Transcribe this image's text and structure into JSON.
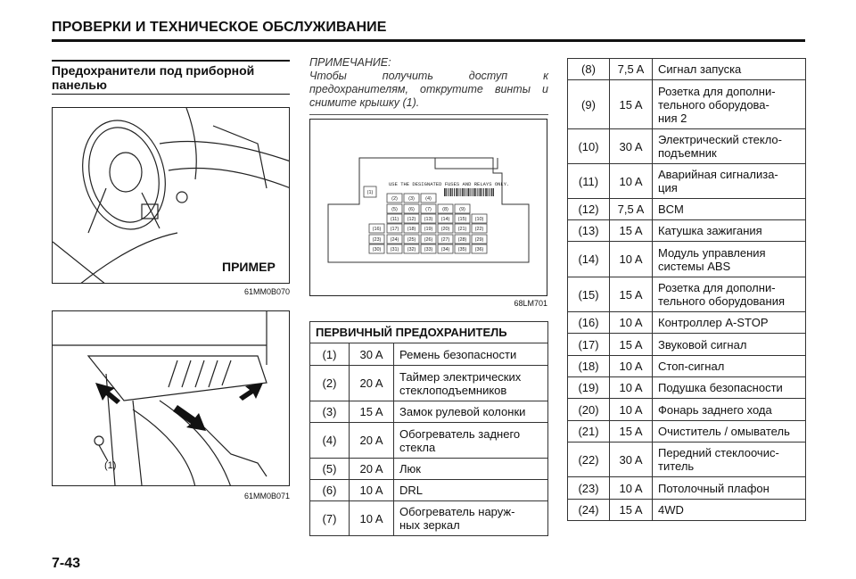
{
  "header": {
    "title": "ПРОВЕРКИ И ТЕХНИЧЕСКОЕ ОБСЛУЖИВАНИЕ"
  },
  "section": {
    "subtitle": "Предохранители под приборной панелью"
  },
  "figure1": {
    "label": "ПРИМЕР",
    "caption": "61MM0B070"
  },
  "figure2": {
    "callout": "(1)",
    "caption": "61MM0B071"
  },
  "note": {
    "heading": "ПРИМЕЧАНИЕ:",
    "text": "Чтобы получить доступ к предохранителям, открутите винты и снимите крышку (1)."
  },
  "fusebox": {
    "warning": "USE THE DESIGNATED FUSES AND RELAYS ONLY.",
    "caption": "68LM701",
    "fuses": [
      "(1)",
      "(2)",
      "(3)",
      "(4)",
      "(5)",
      "(6)",
      "(7)",
      "(8)",
      "(9)",
      "(10)",
      "(11)",
      "(12)",
      "(13)",
      "(14)",
      "(15)",
      "(16)",
      "(17)",
      "(18)",
      "(19)",
      "(20)",
      "(21)",
      "(22)",
      "(23)",
      "(24)",
      "(25)",
      "(26)",
      "(27)",
      "(28)",
      "(29)",
      "(30)",
      "(31)",
      "(32)",
      "(33)",
      "(34)",
      "(35)",
      "(36)"
    ]
  },
  "primary_table": {
    "header": "ПЕРВИЧНЫЙ ПРЕДОХРАНИТЕЛЬ",
    "rows": [
      [
        "(1)",
        "30 A",
        "Ремень безопасности"
      ],
      [
        "(2)",
        "20 A",
        "Таймер электрических\nстеклоподъемников"
      ],
      [
        "(3)",
        "15 A",
        "Замок рулевой колонки"
      ],
      [
        "(4)",
        "20 A",
        "Обогреватель заднего\nстекла"
      ],
      [
        "(5)",
        "20 A",
        "Люк"
      ],
      [
        "(6)",
        "10 A",
        "DRL"
      ],
      [
        "(7)",
        "10 A",
        "Обогреватель наруж-\nных зеркал"
      ]
    ]
  },
  "fuse_table": {
    "rows": [
      [
        "(8)",
        "7,5 A",
        "Сигнал запуска"
      ],
      [
        "(9)",
        "15 A",
        "Розетка для дополни-\nтельного оборудова-\nния 2"
      ],
      [
        "(10)",
        "30 A",
        "Электрический стекло-\nподъемник"
      ],
      [
        "(11)",
        "10 A",
        "Аварийная сигнализа-\nция"
      ],
      [
        "(12)",
        "7,5 A",
        "BCM"
      ],
      [
        "(13)",
        "15 A",
        "Катушка зажигания"
      ],
      [
        "(14)",
        "10 A",
        "Модуль управления\nсистемы ABS"
      ],
      [
        "(15)",
        "15 A",
        "Розетка для дополни-\nтельного оборудования"
      ],
      [
        "(16)",
        "10 A",
        "Контроллер A-STOP"
      ],
      [
        "(17)",
        "15 A",
        "Звуковой сигнал"
      ],
      [
        "(18)",
        "10 A",
        "Стоп-сигнал"
      ],
      [
        "(19)",
        "10 A",
        "Подушка безопасности"
      ],
      [
        "(20)",
        "10 A",
        "Фонарь заднего хода"
      ],
      [
        "(21)",
        "15 A",
        "Очиститель / омыватель"
      ],
      [
        "(22)",
        "30 A",
        "Передний стеклоочис-\nтитель"
      ],
      [
        "(23)",
        "10 A",
        "Потолочный плафон"
      ],
      [
        "(24)",
        "15 A",
        "4WD"
      ]
    ]
  },
  "footer": {
    "page_number": "7-43"
  }
}
